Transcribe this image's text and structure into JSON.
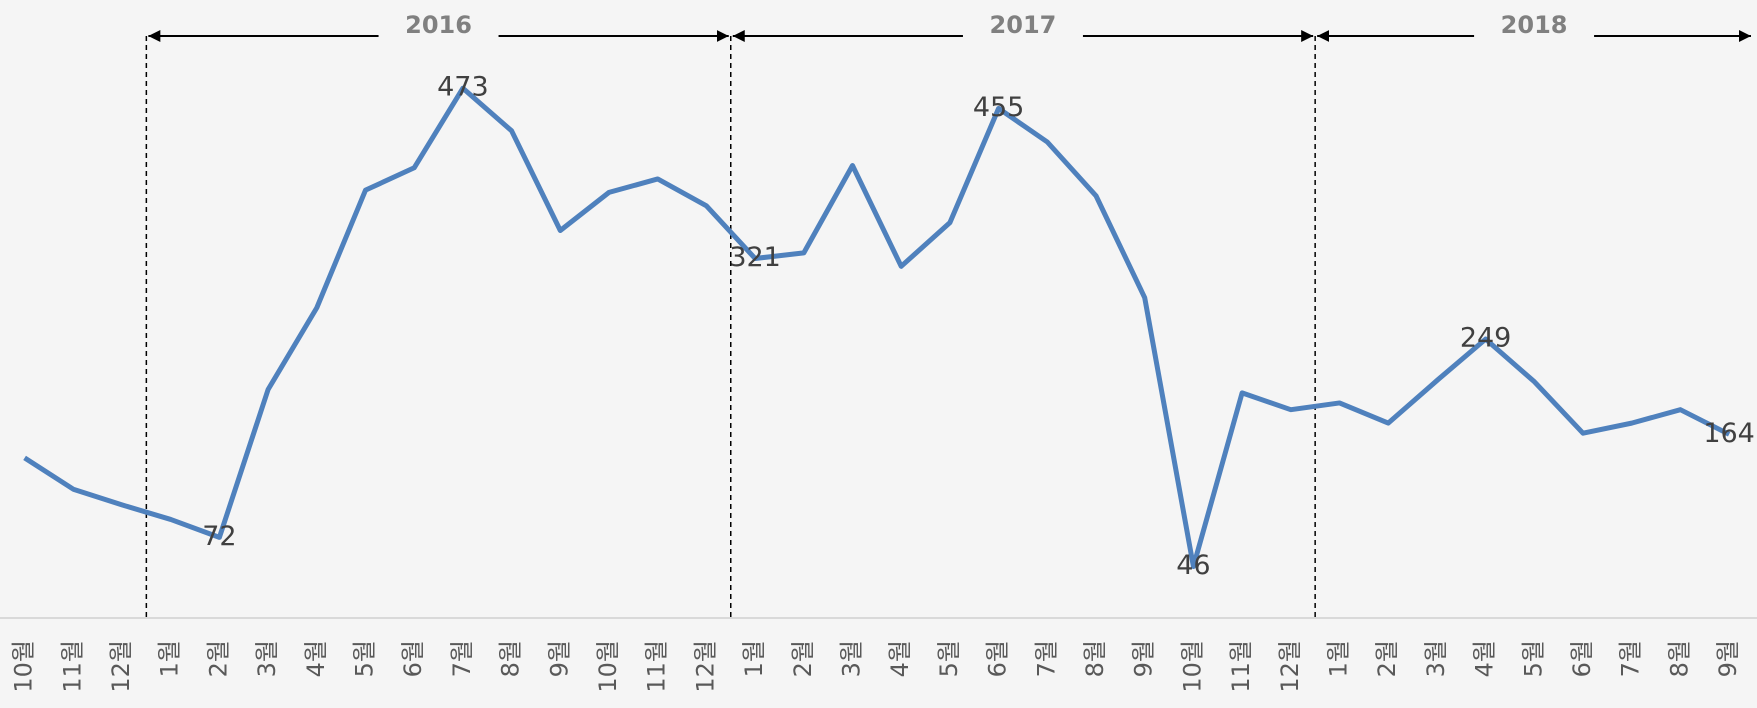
{
  "chart_data": {
    "type": "line",
    "categories": [
      "10월",
      "11월",
      "12월",
      "1월",
      "2월",
      "3월",
      "4월",
      "5월",
      "6월",
      "7월",
      "8월",
      "9월",
      "10월",
      "11월",
      "12월",
      "1월",
      "2월",
      "3월",
      "4월",
      "5월",
      "6월",
      "7월",
      "8월",
      "9월",
      "10월",
      "11월",
      "12월",
      "1월",
      "2월",
      "3월",
      "4월",
      "5월",
      "6월",
      "7월",
      "8월",
      "9월"
    ],
    "series": [
      {
        "color": "#4f81bd",
        "values": [
          143,
          115,
          101,
          88,
          72,
          204,
          277,
          382,
          402,
          473,
          435,
          346,
          380,
          392,
          368,
          321,
          326,
          404,
          314,
          353,
          455,
          425,
          377,
          286,
          46,
          201,
          186,
          192,
          174,
          212,
          249,
          211,
          165,
          174,
          186,
          164
        ],
        "value_labels": [
          null,
          null,
          null,
          null,
          "72",
          null,
          null,
          null,
          null,
          "473",
          null,
          null,
          null,
          null,
          null,
          "321",
          null,
          null,
          null,
          null,
          "455",
          null,
          null,
          null,
          "46",
          null,
          null,
          null,
          null,
          null,
          "249",
          null,
          null,
          null,
          null,
          "164"
        ]
      }
    ],
    "ylim": [
      0,
      500
    ],
    "year_spans": [
      {
        "label": "2016",
        "start": 3,
        "end": 14
      },
      {
        "label": "2017",
        "start": 15,
        "end": 26
      },
      {
        "label": "2018",
        "start": 27,
        "end": 35
      }
    ]
  }
}
